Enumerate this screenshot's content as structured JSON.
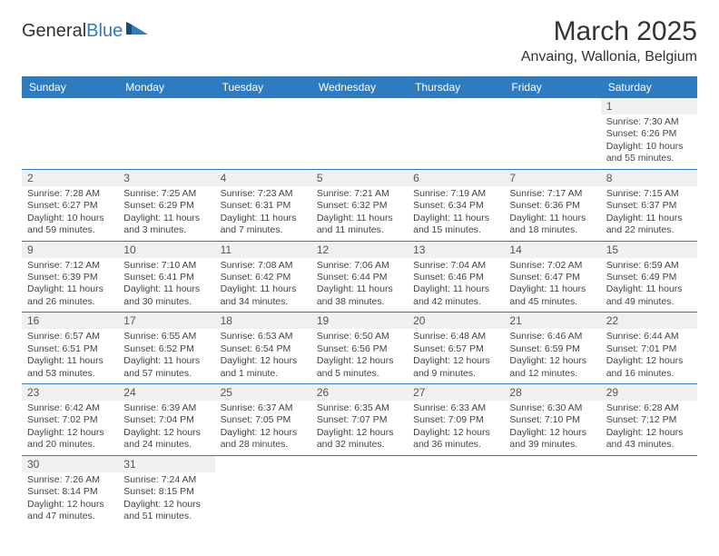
{
  "brand": {
    "part1": "General",
    "part2": "Blue"
  },
  "title": "March 2025",
  "location": "Anvaing, Wallonia, Belgium",
  "colors": {
    "header_bg": "#2f7bbf",
    "header_fg": "#ffffff",
    "border": "#2f7bbf",
    "daynum_bg": "#f0f0f0",
    "text": "#444444"
  },
  "days": [
    "Sunday",
    "Monday",
    "Tuesday",
    "Wednesday",
    "Thursday",
    "Friday",
    "Saturday"
  ],
  "weeks": [
    [
      null,
      null,
      null,
      null,
      null,
      null,
      {
        "n": "1",
        "sr": "Sunrise: 7:30 AM",
        "ss": "Sunset: 6:26 PM",
        "dl": "Daylight: 10 hours and 55 minutes."
      }
    ],
    [
      {
        "n": "2",
        "sr": "Sunrise: 7:28 AM",
        "ss": "Sunset: 6:27 PM",
        "dl": "Daylight: 10 hours and 59 minutes."
      },
      {
        "n": "3",
        "sr": "Sunrise: 7:25 AM",
        "ss": "Sunset: 6:29 PM",
        "dl": "Daylight: 11 hours and 3 minutes."
      },
      {
        "n": "4",
        "sr": "Sunrise: 7:23 AM",
        "ss": "Sunset: 6:31 PM",
        "dl": "Daylight: 11 hours and 7 minutes."
      },
      {
        "n": "5",
        "sr": "Sunrise: 7:21 AM",
        "ss": "Sunset: 6:32 PM",
        "dl": "Daylight: 11 hours and 11 minutes."
      },
      {
        "n": "6",
        "sr": "Sunrise: 7:19 AM",
        "ss": "Sunset: 6:34 PM",
        "dl": "Daylight: 11 hours and 15 minutes."
      },
      {
        "n": "7",
        "sr": "Sunrise: 7:17 AM",
        "ss": "Sunset: 6:36 PM",
        "dl": "Daylight: 11 hours and 18 minutes."
      },
      {
        "n": "8",
        "sr": "Sunrise: 7:15 AM",
        "ss": "Sunset: 6:37 PM",
        "dl": "Daylight: 11 hours and 22 minutes."
      }
    ],
    [
      {
        "n": "9",
        "sr": "Sunrise: 7:12 AM",
        "ss": "Sunset: 6:39 PM",
        "dl": "Daylight: 11 hours and 26 minutes."
      },
      {
        "n": "10",
        "sr": "Sunrise: 7:10 AM",
        "ss": "Sunset: 6:41 PM",
        "dl": "Daylight: 11 hours and 30 minutes."
      },
      {
        "n": "11",
        "sr": "Sunrise: 7:08 AM",
        "ss": "Sunset: 6:42 PM",
        "dl": "Daylight: 11 hours and 34 minutes."
      },
      {
        "n": "12",
        "sr": "Sunrise: 7:06 AM",
        "ss": "Sunset: 6:44 PM",
        "dl": "Daylight: 11 hours and 38 minutes."
      },
      {
        "n": "13",
        "sr": "Sunrise: 7:04 AM",
        "ss": "Sunset: 6:46 PM",
        "dl": "Daylight: 11 hours and 42 minutes."
      },
      {
        "n": "14",
        "sr": "Sunrise: 7:02 AM",
        "ss": "Sunset: 6:47 PM",
        "dl": "Daylight: 11 hours and 45 minutes."
      },
      {
        "n": "15",
        "sr": "Sunrise: 6:59 AM",
        "ss": "Sunset: 6:49 PM",
        "dl": "Daylight: 11 hours and 49 minutes."
      }
    ],
    [
      {
        "n": "16",
        "sr": "Sunrise: 6:57 AM",
        "ss": "Sunset: 6:51 PM",
        "dl": "Daylight: 11 hours and 53 minutes."
      },
      {
        "n": "17",
        "sr": "Sunrise: 6:55 AM",
        "ss": "Sunset: 6:52 PM",
        "dl": "Daylight: 11 hours and 57 minutes."
      },
      {
        "n": "18",
        "sr": "Sunrise: 6:53 AM",
        "ss": "Sunset: 6:54 PM",
        "dl": "Daylight: 12 hours and 1 minute."
      },
      {
        "n": "19",
        "sr": "Sunrise: 6:50 AM",
        "ss": "Sunset: 6:56 PM",
        "dl": "Daylight: 12 hours and 5 minutes."
      },
      {
        "n": "20",
        "sr": "Sunrise: 6:48 AM",
        "ss": "Sunset: 6:57 PM",
        "dl": "Daylight: 12 hours and 9 minutes."
      },
      {
        "n": "21",
        "sr": "Sunrise: 6:46 AM",
        "ss": "Sunset: 6:59 PM",
        "dl": "Daylight: 12 hours and 12 minutes."
      },
      {
        "n": "22",
        "sr": "Sunrise: 6:44 AM",
        "ss": "Sunset: 7:01 PM",
        "dl": "Daylight: 12 hours and 16 minutes."
      }
    ],
    [
      {
        "n": "23",
        "sr": "Sunrise: 6:42 AM",
        "ss": "Sunset: 7:02 PM",
        "dl": "Daylight: 12 hours and 20 minutes."
      },
      {
        "n": "24",
        "sr": "Sunrise: 6:39 AM",
        "ss": "Sunset: 7:04 PM",
        "dl": "Daylight: 12 hours and 24 minutes."
      },
      {
        "n": "25",
        "sr": "Sunrise: 6:37 AM",
        "ss": "Sunset: 7:05 PM",
        "dl": "Daylight: 12 hours and 28 minutes."
      },
      {
        "n": "26",
        "sr": "Sunrise: 6:35 AM",
        "ss": "Sunset: 7:07 PM",
        "dl": "Daylight: 12 hours and 32 minutes."
      },
      {
        "n": "27",
        "sr": "Sunrise: 6:33 AM",
        "ss": "Sunset: 7:09 PM",
        "dl": "Daylight: 12 hours and 36 minutes."
      },
      {
        "n": "28",
        "sr": "Sunrise: 6:30 AM",
        "ss": "Sunset: 7:10 PM",
        "dl": "Daylight: 12 hours and 39 minutes."
      },
      {
        "n": "29",
        "sr": "Sunrise: 6:28 AM",
        "ss": "Sunset: 7:12 PM",
        "dl": "Daylight: 12 hours and 43 minutes."
      }
    ],
    [
      {
        "n": "30",
        "sr": "Sunrise: 7:26 AM",
        "ss": "Sunset: 8:14 PM",
        "dl": "Daylight: 12 hours and 47 minutes."
      },
      {
        "n": "31",
        "sr": "Sunrise: 7:24 AM",
        "ss": "Sunset: 8:15 PM",
        "dl": "Daylight: 12 hours and 51 minutes."
      },
      null,
      null,
      null,
      null,
      null
    ]
  ]
}
